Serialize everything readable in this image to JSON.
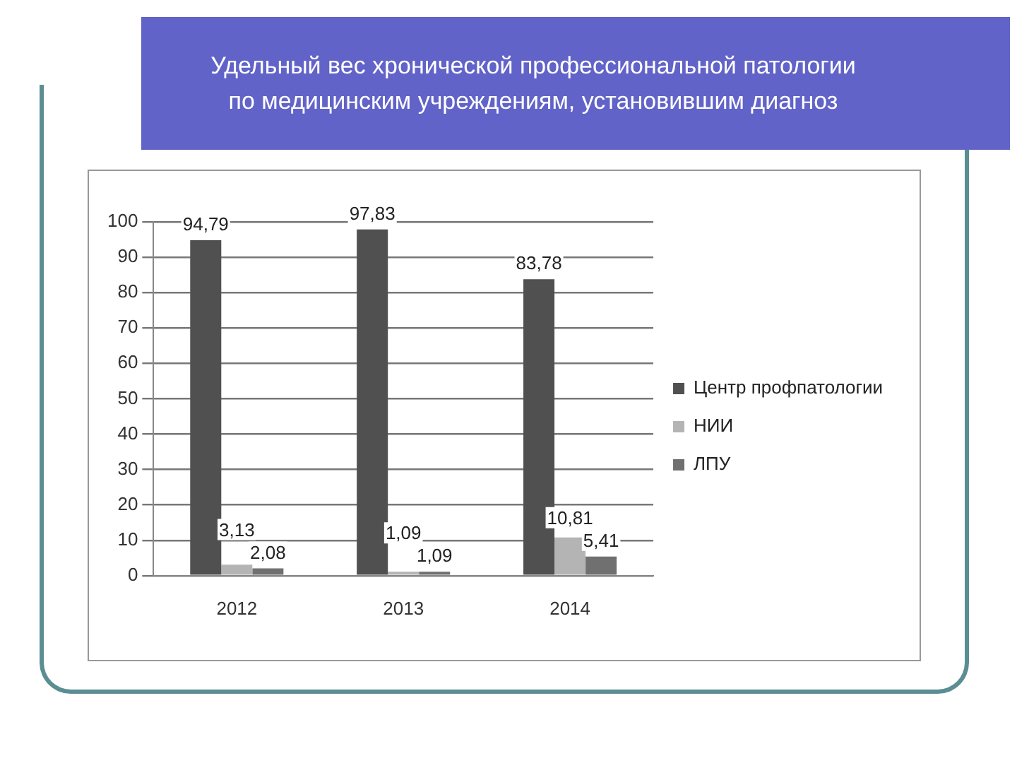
{
  "chart_data": {
    "type": "bar",
    "title": "Удельный вес хронической профессиональной патологии по медицинским учреждениям, установившим диагноз",
    "categories": [
      "2012",
      "2013",
      "2014"
    ],
    "series": [
      {
        "name": "Центр профпатологии",
        "color": "#505050",
        "values": [
          94.79,
          97.83,
          83.78
        ],
        "value_labels": [
          "94,79",
          "97,83",
          "83,78"
        ]
      },
      {
        "name": "НИИ",
        "color": "#b4b4b4",
        "values": [
          3.13,
          1.09,
          10.81
        ],
        "value_labels": [
          "3,13",
          "1,09",
          "10,81"
        ]
      },
      {
        "name": "ЛПУ",
        "color": "#707070",
        "values": [
          2.08,
          1.09,
          5.41
        ],
        "value_labels": [
          "2,08",
          "1,09",
          "5,41"
        ]
      }
    ],
    "ylim": [
      0,
      100
    ],
    "yticks": [
      0,
      10,
      20,
      30,
      40,
      50,
      60,
      70,
      80,
      90,
      100
    ],
    "grid": "y",
    "legend": "right"
  }
}
